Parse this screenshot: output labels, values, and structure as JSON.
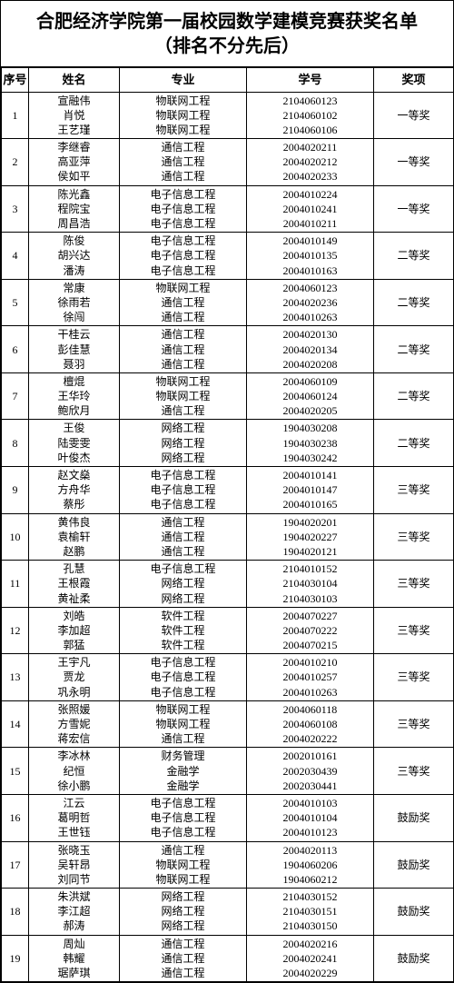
{
  "title_line1": "合肥经济学院第一届校园数学建模竞赛获奖名单",
  "title_line2": "（排名不分先后）",
  "headers": {
    "idx": "序号",
    "name": "姓名",
    "major": "专业",
    "sid": "学号",
    "award": "奖项"
  },
  "rows": [
    {
      "idx": "1",
      "names": [
        "宣融伟",
        "肖悦",
        "王艺瑾"
      ],
      "majors": [
        "物联网工程",
        "物联网工程",
        "物联网工程"
      ],
      "sids": [
        "2104060123",
        "2104060102",
        "2104060106"
      ],
      "award": "一等奖"
    },
    {
      "idx": "2",
      "names": [
        "李继睿",
        "高亚萍",
        "侯如平"
      ],
      "majors": [
        "通信工程",
        "通信工程",
        "通信工程"
      ],
      "sids": [
        "2004020211",
        "2004020212",
        "2004020233"
      ],
      "award": "一等奖"
    },
    {
      "idx": "3",
      "names": [
        "陈光鑫",
        "程院宝",
        "周昌浩"
      ],
      "majors": [
        "电子信息工程",
        "电子信息工程",
        "电子信息工程"
      ],
      "sids": [
        "2004010224",
        "2004010241",
        "2004010211"
      ],
      "award": "一等奖"
    },
    {
      "idx": "4",
      "names": [
        "陈俊",
        "胡兴达",
        "潘涛"
      ],
      "majors": [
        "电子信息工程",
        "电子信息工程",
        "电子信息工程"
      ],
      "sids": [
        "2004010149",
        "2004010135",
        "2004010163"
      ],
      "award": "二等奖"
    },
    {
      "idx": "5",
      "names": [
        "常康",
        "徐雨若",
        "徐闯"
      ],
      "majors": [
        "物联网工程",
        "通信工程",
        "通信工程"
      ],
      "sids": [
        "2004060123",
        "2004020236",
        "2004010263"
      ],
      "award": "二等奖"
    },
    {
      "idx": "6",
      "names": [
        "干桂云",
        "彭佳慧",
        "聂羽"
      ],
      "majors": [
        "通信工程",
        "通信工程",
        "通信工程"
      ],
      "sids": [
        "2004020130",
        "2004020134",
        "2004020208"
      ],
      "award": "二等奖"
    },
    {
      "idx": "7",
      "names": [
        "檀焜",
        "王华玲",
        "鲍欣月"
      ],
      "majors": [
        "物联网工程",
        "物联网工程",
        "通信工程"
      ],
      "sids": [
        "2004060109",
        "2004060124",
        "2004020205"
      ],
      "award": "二等奖"
    },
    {
      "idx": "8",
      "names": [
        "王俊",
        "陆雯雯",
        "叶俊杰"
      ],
      "majors": [
        "网络工程",
        "网络工程",
        "网络工程"
      ],
      "sids": [
        "1904030208",
        "1904030238",
        "1904030242"
      ],
      "award": "二等奖"
    },
    {
      "idx": "9",
      "names": [
        "赵文燊",
        "方舟华",
        "蔡彤"
      ],
      "majors": [
        "电子信息工程",
        "电子信息工程",
        "电子信息工程"
      ],
      "sids": [
        "2004010141",
        "2004010147",
        "2004010165"
      ],
      "award": "三等奖"
    },
    {
      "idx": "10",
      "names": [
        "黄伟良",
        "袁榆轩",
        "赵鹏"
      ],
      "majors": [
        "通信工程",
        "通信工程",
        "通信工程"
      ],
      "sids": [
        "1904020201",
        "1904020227",
        "1904020121"
      ],
      "award": "三等奖"
    },
    {
      "idx": "11",
      "names": [
        "孔慧",
        "王根霞",
        "黄祉柔"
      ],
      "majors": [
        "电子信息工程",
        "网络工程",
        "网络工程"
      ],
      "sids": [
        "2104010152",
        "2104030104",
        "2104030103"
      ],
      "award": "三等奖"
    },
    {
      "idx": "12",
      "names": [
        "刘皓",
        "李加超",
        "郭猛"
      ],
      "majors": [
        "软件工程",
        "软件工程",
        "软件工程"
      ],
      "sids": [
        "2004070227",
        "2004070222",
        "2004070215"
      ],
      "award": "三等奖"
    },
    {
      "idx": "13",
      "names": [
        "王宇凡",
        "贾龙",
        "巩永明"
      ],
      "majors": [
        "电子信息工程",
        "电子信息工程",
        "电子信息工程"
      ],
      "sids": [
        "2004010210",
        "2004010257",
        "2004010263"
      ],
      "award": "三等奖"
    },
    {
      "idx": "14",
      "names": [
        "张照媛",
        "方雪妮",
        "蒋宏信"
      ],
      "majors": [
        "物联网工程",
        "物联网工程",
        "通信工程"
      ],
      "sids": [
        "2004060118",
        "2004060108",
        "2004020222"
      ],
      "award": "三等奖"
    },
    {
      "idx": "15",
      "names": [
        "李冰林",
        "纪恒",
        "徐小鹏"
      ],
      "majors": [
        "财务管理",
        "金融学",
        "金融学"
      ],
      "sids": [
        "2002010161",
        "2002030439",
        "2002030441"
      ],
      "award": "三等奖"
    },
    {
      "idx": "16",
      "names": [
        "江云",
        "葛明哲",
        "王世钰"
      ],
      "majors": [
        "电子信息工程",
        "电子信息工程",
        "电子信息工程"
      ],
      "sids": [
        "2004010103",
        "2004010104",
        "2004010123"
      ],
      "award": "鼓励奖"
    },
    {
      "idx": "17",
      "names": [
        "张晓玉",
        "吴轩昂",
        "刘同节"
      ],
      "majors": [
        "通信工程",
        "物联网工程",
        "物联网工程"
      ],
      "sids": [
        "2004020113",
        "1904060206",
        "1904060212"
      ],
      "award": "鼓励奖"
    },
    {
      "idx": "18",
      "names": [
        "朱洪斌",
        "李江超",
        "郝涛"
      ],
      "majors": [
        "网络工程",
        "网络工程",
        "网络工程"
      ],
      "sids": [
        "2104030152",
        "2104030151",
        "2104030150"
      ],
      "award": "鼓励奖"
    },
    {
      "idx": "19",
      "names": [
        "周灿",
        "韩耀",
        "琚萨琪"
      ],
      "majors": [
        "通信工程",
        "通信工程",
        "通信工程"
      ],
      "sids": [
        "2004020216",
        "2004020241",
        "2004020229"
      ],
      "award": "鼓励奖"
    }
  ]
}
